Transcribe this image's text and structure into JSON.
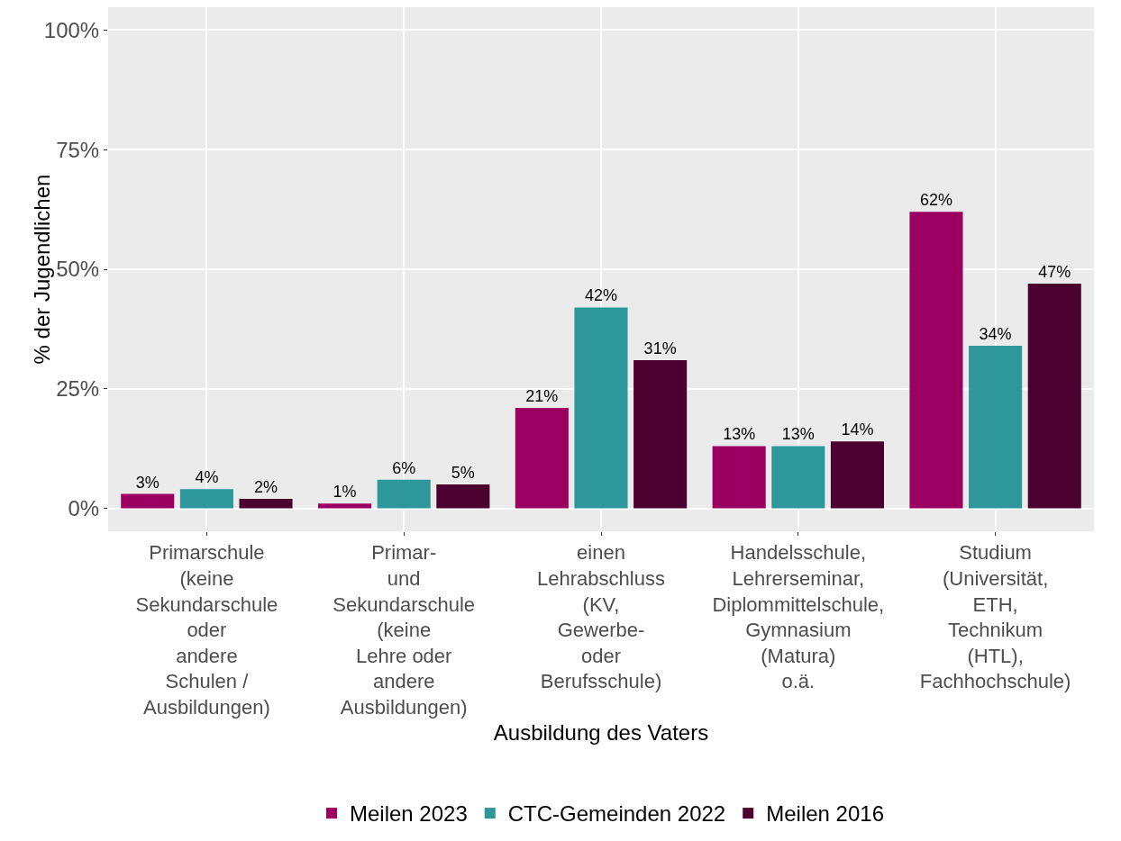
{
  "chart_data": {
    "type": "bar",
    "xlabel": "Ausbildung des Vaters",
    "ylabel": "% der Jugendlichen",
    "categories": [
      "Primarschule\n(keine\nSekundarschule\noder\nandere\nSchulen /\nAusbildungen)",
      "Primar-\nund\nSekundarschule\n(keine\nLehre oder\nandere\nAusbildungen)",
      "einen\nLehrabschluss\n(KV,\nGewerbe-\noder\nBerufsschule)",
      "Handelsschule,\nLehrerseminar,\nDiplommittelschule,\nGymnasium\n(Matura)\no.ä.",
      "Studium\n(Universität,\nETH,\nTechnikum\n(HTL),\nFachhochschule)"
    ],
    "series": [
      {
        "name": "Meilen 2023",
        "color": "#9b0060",
        "values": [
          3,
          1,
          21,
          13,
          62
        ],
        "value_labels": [
          "3%",
          "1%",
          "21%",
          "13%",
          "62%"
        ]
      },
      {
        "name": "CTC-Gemeinden 2022",
        "color": "#2e979b",
        "values": [
          4,
          6,
          42,
          13,
          34
        ],
        "value_labels": [
          "4%",
          "6%",
          "42%",
          "13%",
          "34%"
        ]
      },
      {
        "name": "Meilen 2016",
        "color": "#4b0030",
        "values": [
          2,
          5,
          31,
          14,
          47
        ],
        "value_labels": [
          "2%",
          "5%",
          "31%",
          "14%",
          "47%"
        ]
      }
    ],
    "ylim": [
      -4.8,
      104.8
    ],
    "yticks": [
      {
        "value": 0,
        "label": "0%"
      },
      {
        "value": 25,
        "label": "25%"
      },
      {
        "value": 50,
        "label": "50%"
      },
      {
        "value": 75,
        "label": "75%"
      },
      {
        "value": 100,
        "label": "100%"
      }
    ],
    "grid": true,
    "legend": "bottom"
  }
}
